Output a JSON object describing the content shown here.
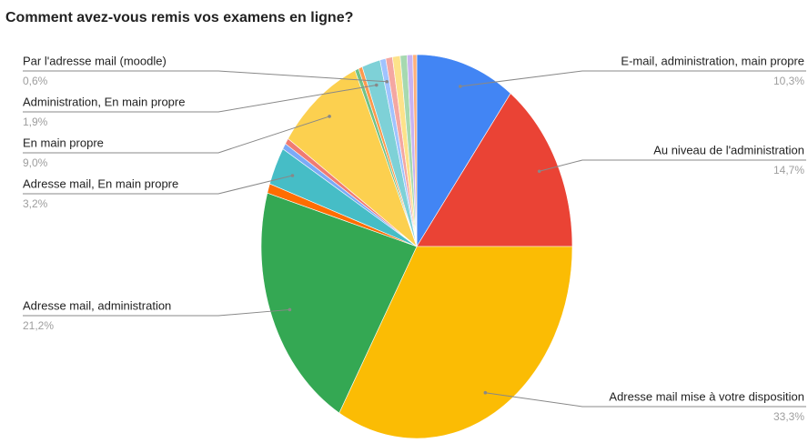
{
  "chart_data": {
    "type": "pie",
    "title": "Comment avez-vous remis vos examens en ligne?",
    "categories": [
      "E-mail, administration, main propre",
      "Au niveau de l'administration",
      "Adresse mail mise à votre disposition",
      "Adresse mail, administration",
      null,
      "Adresse mail, En main propre",
      null,
      null,
      "En main propre",
      null,
      null,
      "Administration, En main propre",
      "Par l'adresse mail (moodle)",
      null,
      null,
      null,
      null,
      null
    ],
    "values": [
      10.3,
      14.7,
      33.3,
      21.2,
      0.8,
      3.2,
      0.5,
      0.5,
      9.0,
      0.4,
      0.4,
      1.9,
      0.6,
      0.7,
      0.8,
      0.7,
      0.6,
      0.4
    ],
    "value_labels": [
      "10,3%",
      "14,7%",
      "33,3%",
      "21,2%",
      null,
      "3,2%",
      null,
      null,
      "9,0%",
      null,
      null,
      "1,9%",
      "0,6%",
      null,
      null,
      null,
      null,
      null
    ],
    "colors": [
      "#4285f4",
      "#ea4335",
      "#fbbc04",
      "#34a853",
      "#ff6d01",
      "#46bdc6",
      "#7baaf7",
      "#f07b72",
      "#fcd04f",
      "#71c287",
      "#ff994d",
      "#7ed1d7",
      "#a0c3ff",
      "#f4a7a2",
      "#fde28a",
      "#a6d9b0",
      "#c9b3f0",
      "#ffb07a"
    ]
  }
}
